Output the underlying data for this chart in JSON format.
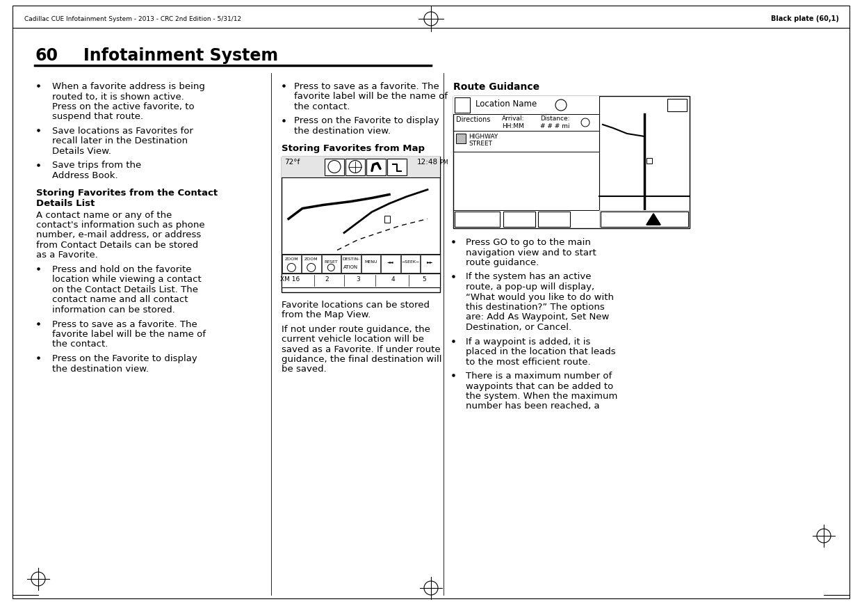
{
  "bg_color": "#ffffff",
  "header_left": "Cadillac CUE Infotainment System - 2013 - CRC 2nd Edition - 5/31/12",
  "header_right": "Black plate (60,1)",
  "page_number": "60",
  "page_title": "Infotainment System",
  "col1_bullets": [
    "When a favorite address is being\nrouted to, it is shown active.\nPress on the active favorite, to\nsuspend that route.",
    "Save locations as Favorites for\nrecall later in the Destination\nDetails View.",
    "Save trips from the\nAddress Book."
  ],
  "col1_section_heading1": "Storing Favorites from the Contact",
  "col1_section_heading2": "Details List",
  "col1_section_body": "A contact name or any of the\ncontact's information such as phone\nnumber, e-mail address, or address\nfrom Contact Details can be stored\nas a Favorite.",
  "col1_section_bullets": [
    "Press and hold on the favorite\nlocation while viewing a contact\non the Contact Details List. The\ncontact name and all contact\ninformation can be stored.",
    "Press to save as a favorite. The\nfavorite label will be the name of\nthe contact.",
    "Press on the Favorite to display\nthe destination view."
  ],
  "col2_heading": "Storing Favorites from Map",
  "col2_body1": "Favorite locations can be stored\nfrom the Map View.",
  "col2_body2": "If not under route guidance, the\ncurrent vehicle location will be\nsaved as a Favorite. If under route\nguidance, the final destination will\nbe saved.",
  "col3_heading": "Route Guidance",
  "col3_bullets": [
    "Press GO to go to the main\nnavigation view and to start\nroute guidance.",
    "If the system has an active\nroute, a pop-up will display,\n“What would you like to do with\nthis destination?” The options\nare: Add As Waypoint, Set New\nDestination, or Cancel.",
    "If a waypoint is added, it is\nplaced in the location that leads\nto the most efficient route.",
    "There is a maximum number of\nwaypoints that can be added to\nthe system. When the maximum\nnumber has been reached, a"
  ]
}
